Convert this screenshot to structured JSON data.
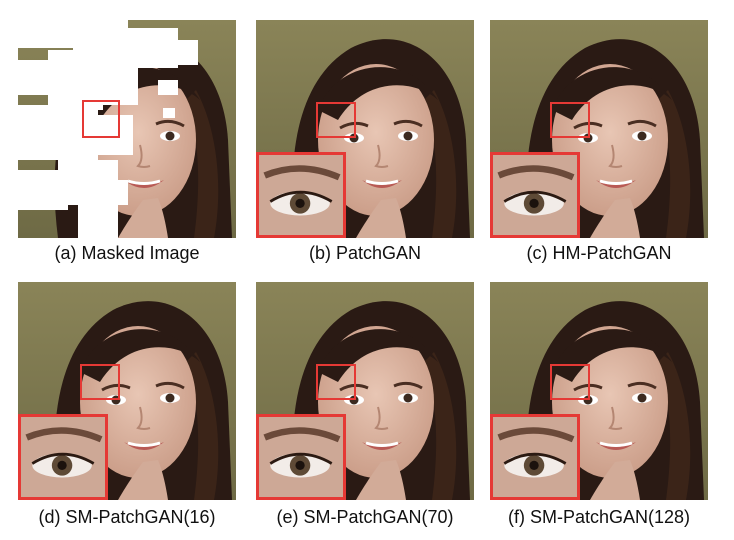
{
  "figure": {
    "panels": [
      {
        "id": "a",
        "caption": "(a) Masked Image",
        "icon": "face-photo-masked"
      },
      {
        "id": "b",
        "caption": "(b) PatchGAN",
        "icon": "face-photo-inpainted"
      },
      {
        "id": "c",
        "caption": "(c) HM-PatchGAN",
        "icon": "face-photo-inpainted"
      },
      {
        "id": "d",
        "caption": "(d) SM-PatchGAN(16)",
        "icon": "face-photo-inpainted"
      },
      {
        "id": "e",
        "caption": "(e) SM-PatchGAN(70)",
        "icon": "face-photo-inpainted"
      },
      {
        "id": "f",
        "caption": "(f) SM-PatchGAN(128)",
        "icon": "face-photo-inpainted"
      }
    ],
    "colors": {
      "highlight_box": "#e53935",
      "background": "#7a6f4a",
      "hair": "#2a1a14",
      "skin": "#d9b5a3"
    }
  }
}
